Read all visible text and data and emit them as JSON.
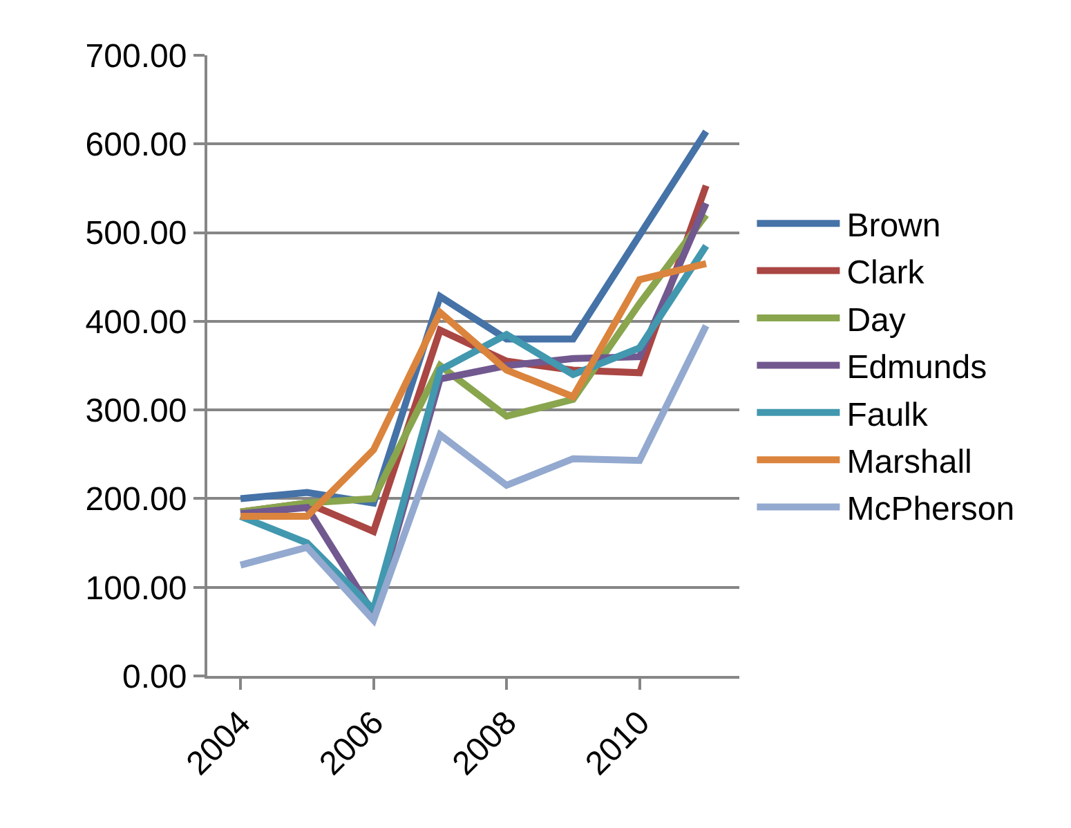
{
  "chart_data": {
    "type": "line",
    "categories": [
      "2004",
      null,
      "2006",
      null,
      "2008",
      null,
      "2010",
      null
    ],
    "series": [
      {
        "name": "Brown",
        "color": "#4572a7",
        "values": [
          200,
          207,
          195,
          428,
          380,
          380,
          497,
          614
        ]
      },
      {
        "name": "Clark",
        "color": "#aa4643",
        "values": [
          185,
          195,
          163,
          390,
          355,
          345,
          342,
          553
        ]
      },
      {
        "name": "Day",
        "color": "#89a54e",
        "values": [
          185,
          195,
          200,
          350,
          293,
          312,
          420,
          520
        ]
      },
      {
        "name": "Edmunds",
        "color": "#71588f",
        "values": [
          183,
          190,
          70,
          335,
          350,
          358,
          360,
          533
        ]
      },
      {
        "name": "Faulk",
        "color": "#4198af",
        "values": [
          180,
          150,
          75,
          345,
          385,
          340,
          370,
          485
        ]
      },
      {
        "name": "Marshall",
        "color": "#db843d",
        "values": [
          180,
          180,
          255,
          410,
          345,
          315,
          447,
          465
        ]
      },
      {
        "name": "McPherson",
        "color": "#93a9cf",
        "values": [
          125,
          145,
          63,
          272,
          215,
          245,
          243,
          395
        ]
      }
    ],
    "ylim": [
      0,
      700
    ],
    "yticks": [
      {
        "value": 0,
        "label": "0.00"
      },
      {
        "value": 100,
        "label": "100.00"
      },
      {
        "value": 200,
        "label": "200.00"
      },
      {
        "value": 300,
        "label": "300.00"
      },
      {
        "value": 400,
        "label": "400.00"
      },
      {
        "value": 500,
        "label": "500.00"
      },
      {
        "value": 600,
        "label": "600.00"
      },
      {
        "value": 700,
        "label": "700.00"
      }
    ],
    "grid": "y",
    "legend": "right",
    "marker": "none",
    "line_style": "solid"
  }
}
